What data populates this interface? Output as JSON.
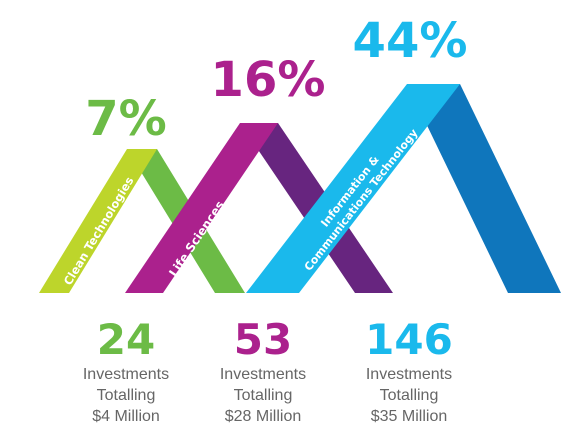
{
  "chart_data": {
    "type": "infographic",
    "categories": [
      {
        "name": "Clean Technologies",
        "share": "7%",
        "share_value": 7,
        "investments": 24,
        "count_label": "24",
        "line1": "Investments",
        "line2": "Totalling",
        "total": "$4 Million",
        "color_left": "#bdd52b",
        "color_right": "#6cbb46"
      },
      {
        "name": "Life Sciences",
        "share": "16%",
        "share_value": 16,
        "investments": 53,
        "count_label": "53",
        "line1": "Investments",
        "line2": "Totalling",
        "total": "$28 Million",
        "color_left": "#ab218d",
        "color_right": "#67257f"
      },
      {
        "name_line1": "Information &",
        "name_line2": "Communications Technology",
        "share": "44%",
        "share_value": 44,
        "investments": 146,
        "count_label": "146",
        "line1": "Investments",
        "line2": "Totalling",
        "total": "$35 Million",
        "color_left": "#1ab9ec",
        "color_right": "#0f76bc"
      }
    ]
  }
}
